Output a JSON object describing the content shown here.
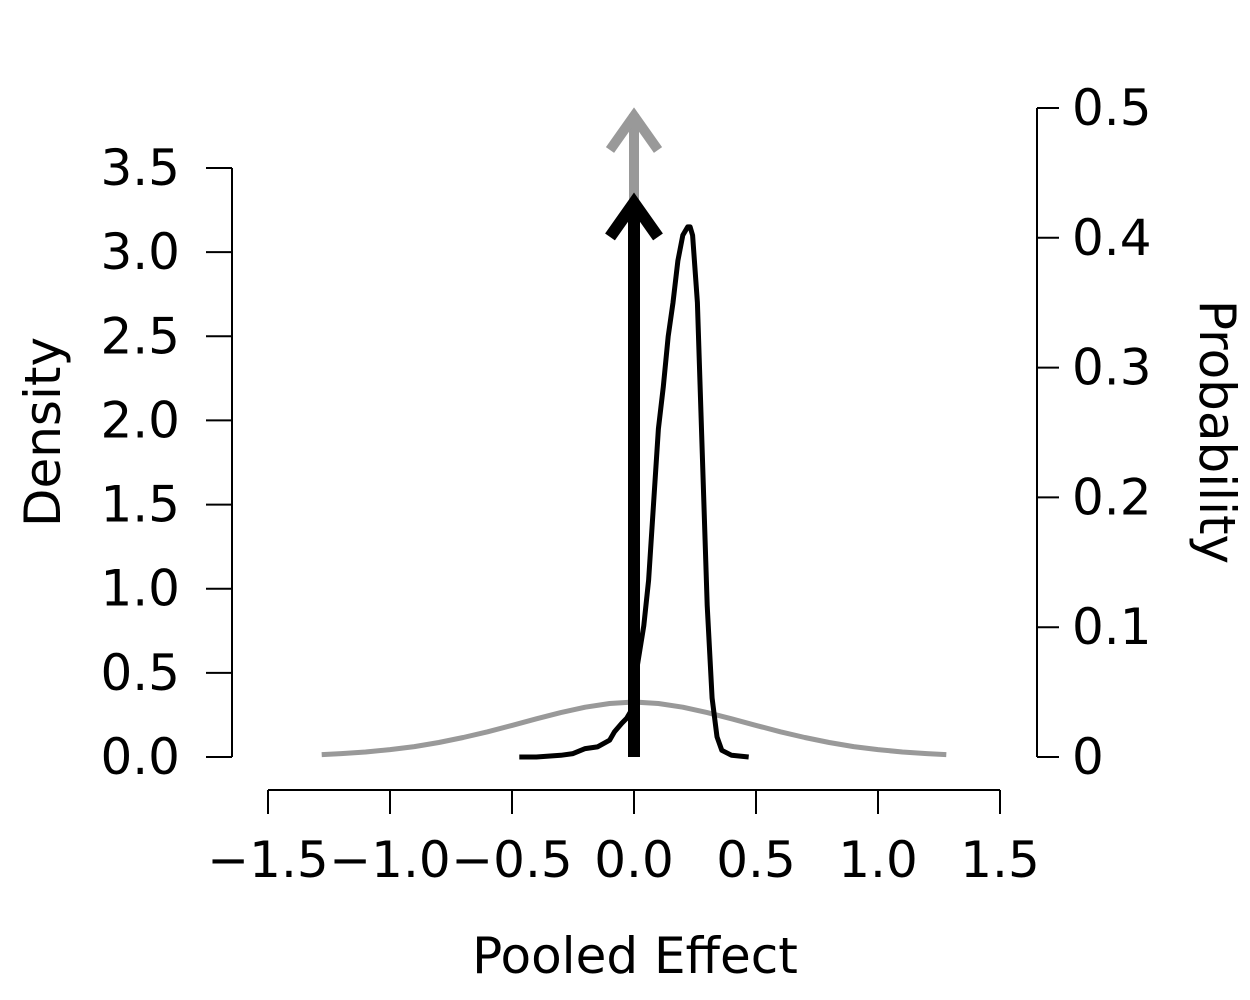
{
  "chart_data": {
    "type": "line",
    "xlabel": "Pooled Effect",
    "ylabel_left": "Density",
    "ylabel_right": "Probability",
    "xlim": [
      -1.5,
      1.5
    ],
    "ylim_left": [
      0,
      3.5
    ],
    "ylim_right": [
      0,
      0.5
    ],
    "x_ticks": [
      -1.5,
      -1.0,
      -0.5,
      0.0,
      0.5,
      1.0,
      1.5
    ],
    "x_tick_labels": [
      "−1.5",
      "−1.0",
      "−0.5",
      "0.0",
      "0.5",
      "1.0",
      "1.5"
    ],
    "y_ticks_left": [
      0,
      0.5,
      1.0,
      1.5,
      2.0,
      2.5,
      3.0,
      3.5
    ],
    "y_tick_labels_left": [
      "0.0",
      "0.5",
      "1.0",
      "1.5",
      "2.0",
      "2.5",
      "3.0",
      "3.5"
    ],
    "y_ticks_right": [
      0,
      0.1,
      0.2,
      0.3,
      0.4,
      0.5
    ],
    "y_tick_labels_right": [
      "0",
      "0.1",
      "0.2",
      "0.3",
      "0.4",
      "0.5"
    ],
    "grid": false,
    "series": [
      {
        "color": "#999999",
        "x": [
          -1.28,
          -1.2,
          -1.1,
          -1.0,
          -0.9,
          -0.8,
          -0.7,
          -0.6,
          -0.5,
          -0.4,
          -0.3,
          -0.2,
          -0.1,
          0.0,
          0.1,
          0.2,
          0.3,
          0.4,
          0.5,
          0.6,
          0.7,
          0.8,
          0.9,
          1.0,
          1.1,
          1.2,
          1.28
        ],
        "y": [
          0.014,
          0.02,
          0.03,
          0.044,
          0.062,
          0.086,
          0.116,
          0.15,
          0.188,
          0.227,
          0.264,
          0.296,
          0.318,
          0.327,
          0.318,
          0.296,
          0.264,
          0.227,
          0.188,
          0.15,
          0.116,
          0.086,
          0.062,
          0.044,
          0.03,
          0.02,
          0.014
        ]
      },
      {
        "color": "#000000",
        "x": [
          -0.47,
          -0.4,
          -0.3,
          -0.25,
          -0.2,
          -0.15,
          -0.1,
          -0.08,
          -0.05,
          -0.03,
          -0.01,
          0.0,
          0.02,
          0.04,
          0.06,
          0.08,
          0.1,
          0.12,
          0.14,
          0.16,
          0.18,
          0.2,
          0.22,
          0.23,
          0.24,
          0.26,
          0.28,
          0.3,
          0.32,
          0.34,
          0.36,
          0.4,
          0.47
        ],
        "y": [
          0.0,
          0.0,
          0.01,
          0.02,
          0.05,
          0.06,
          0.1,
          0.15,
          0.2,
          0.23,
          0.28,
          0.42,
          0.6,
          0.78,
          1.05,
          1.5,
          1.95,
          2.2,
          2.5,
          2.7,
          2.95,
          3.1,
          3.15,
          3.15,
          3.1,
          2.7,
          1.8,
          0.9,
          0.35,
          0.12,
          0.04,
          0.01,
          0.0
        ]
      }
    ],
    "point_masses": [
      {
        "x": 0.0,
        "probability": 0.5,
        "color": "#999999"
      },
      {
        "x": 0.0,
        "probability": 0.433,
        "color": "#000000"
      }
    ]
  }
}
